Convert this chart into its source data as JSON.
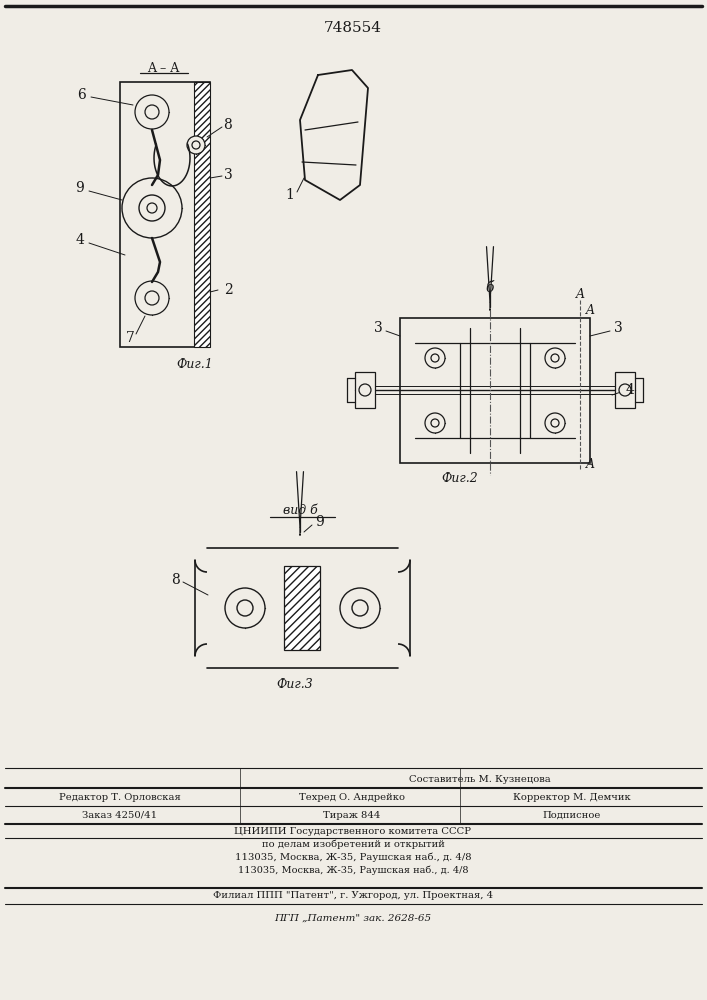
{
  "patent_number": "748554",
  "background_color": "#f0ede6",
  "line_color": "#1a1a1a",
  "fig1_label": "Фиг.1",
  "fig2_label": "Фиг.2",
  "fig3_label": "Фиг.3"
}
